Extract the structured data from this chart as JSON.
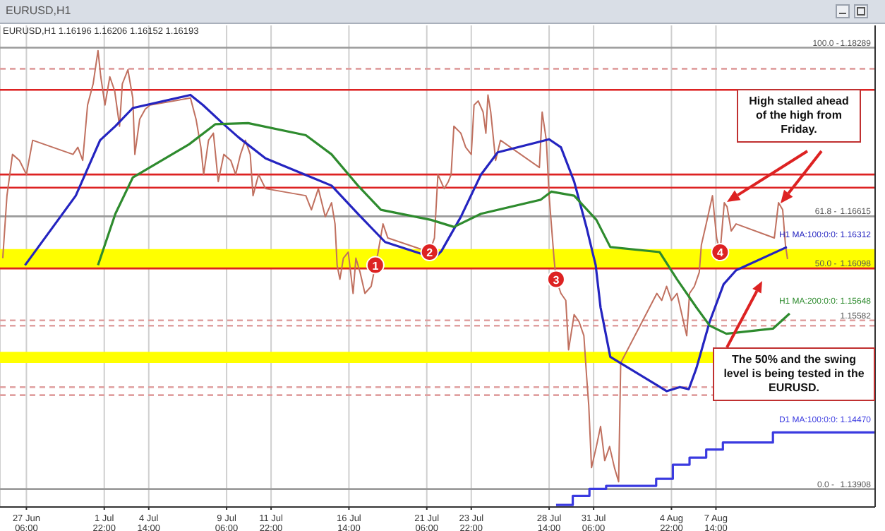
{
  "chart_data": {
    "type": "line",
    "title": "EURUSD,H1",
    "subtitle": "EURUSD,H1  1.16196 1.16206 1.16152 1.16193",
    "xlim": [
      "--06-25T16:00",
      "--08-17T03:00"
    ],
    "ylim": [
      1.1373,
      1.1851
    ],
    "xticks": [
      {
        "value": "--06-27T06:00",
        "label": "27 Jun 06:00"
      },
      {
        "value": "--07-01T22:00",
        "label": "1 Jul 22:00"
      },
      {
        "value": "--07-04T14:00",
        "label": "4 Jul 14:00"
      },
      {
        "value": "--07-09T06:00",
        "label": "9 Jul 06:00"
      },
      {
        "value": "--07-11T22:00",
        "label": "11 Jul 22:00"
      },
      {
        "value": "--07-16T14:00",
        "label": "16 Jul 14:00"
      },
      {
        "value": "--07-21T06:00",
        "label": "21 Jul 06:00"
      },
      {
        "value": "--07-23T22:00",
        "label": "23 Jul 22:00"
      },
      {
        "value": "--07-28T14:00",
        "label": "28 Jul 14:00"
      },
      {
        "value": "--07-31T06:00",
        "label": "31 Jul 06:00"
      },
      {
        "value": "--08-04T22:00",
        "label": "4 Aug 22:00"
      },
      {
        "value": "--08-07T14:00",
        "label": "7 Aug 14:00"
      }
    ],
    "tick_labels": "x",
    "grid": "x",
    "series": [
      {
        "color": "#c0705f",
        "x": [
          "--06-25T20:00",
          "--06-26T02:00",
          "--06-26T10:00",
          "--06-26T20:00",
          "--06-27T06:00",
          "--06-27T15:00",
          "--06-30T01:00",
          "--06-30T08:00",
          "--06-30T15:00",
          "--06-30T22:00",
          "--07-01T06:00",
          "--07-01T13:00",
          "--07-01T17:00",
          "--07-01T23:00",
          "--07-02T06:00",
          "--07-02T13:00",
          "--07-02T20:00",
          "--07-03T00:00",
          "--07-03T08:00",
          "--07-03T15:00",
          "--07-03T18:00",
          "--07-04T01:00",
          "--07-04T09:00",
          "--07-04T16:00",
          "--07-07T02:00",
          "--07-07T10:00",
          "--07-07T17:00",
          "--07-07T21:00",
          "--07-08T04:00",
          "--07-08T11:00",
          "--07-08T18:00",
          "--07-09T02:00",
          "--07-09T12:00",
          "--07-09T19:00",
          "--07-10T02:00",
          "--07-10T09:00",
          "--07-10T16:00",
          "--07-10T20:00",
          "--07-11T04:00",
          "--07-11T14:00",
          "--07-14T00:00",
          "--07-14T08:00",
          "--07-14T18:00",
          "--07-15T04:00",
          "--07-15T13:00",
          "--07-15T18:00",
          "--07-15T21:00",
          "--07-16T01:00",
          "--07-16T06:00",
          "--07-16T13:00",
          "--07-16T20:00",
          "--07-17T00:00",
          "--07-17T06:00",
          "--07-17T13:00",
          "--07-17T22:00",
          "--07-18T04:00",
          "--07-18T08:00",
          "--07-18T15:00",
          "--07-18T22:00",
          "--07-21T10:00",
          "--07-21T17:00",
          "--07-21T22:00",
          "--07-22T07:00",
          "--07-22T13:00",
          "--07-22T17:00",
          "--07-22T21:00",
          "--07-23T07:00",
          "--07-23T14:00",
          "--07-23T22:00",
          "--07-24T02:00",
          "--07-24T08:00",
          "--07-24T15:00",
          "--07-24T19:00",
          "--07-24T22:00",
          "--07-25T02:00",
          "--07-25T09:00",
          "--07-25T16:00",
          "--07-28T00:00",
          "--07-28T04:00",
          "--07-28T10:00",
          "--07-28T14:00",
          "--07-28T21:00",
          "--07-29T00:00",
          "--07-29T07:00",
          "--07-29T14:00",
          "--07-29T18:00",
          "--07-30T02:00",
          "--07-30T09:00",
          "--07-30T16:00",
          "--07-30T20:00",
          "--07-30T23:00",
          "--07-31T03:00",
          "--07-31T10:00",
          "--07-31T16:00",
          "--07-31T22:00",
          "--08-01T05:00",
          "--08-01T12:00",
          "--08-01T18:00",
          "--08-01T21:00",
          "--08-04T01:00",
          "--08-04T08:00",
          "--08-04T15:00",
          "--08-04T22:00",
          "--08-05T06:00",
          "--08-05T13:00",
          "--08-05T20:00",
          "--08-06T00:00",
          "--08-06T07:00",
          "--08-06T14:00",
          "--08-06T17:00",
          "--08-07T00:00",
          "--08-07T09:00",
          "--08-07T15:00",
          "--08-07T20:00",
          "--08-08T02:00",
          "--08-08T06:00",
          "--08-08T12:00",
          "--08-08T19:00",
          "--08-11T02:00",
          "--08-11T08:00",
          "--08-11T14:00",
          "--08-11T18:00",
          "--08-11T21:00"
        ],
        "values": [
          1.162,
          1.1682,
          1.1723,
          1.1717,
          1.1703,
          1.1737,
          1.1723,
          1.173,
          1.1717,
          1.1772,
          1.1793,
          1.1826,
          1.18,
          1.1772,
          1.18,
          1.1786,
          1.1751,
          1.1793,
          1.1807,
          1.1779,
          1.1723,
          1.1758,
          1.1768,
          1.1772,
          1.1779,
          1.1758,
          1.173,
          1.1703,
          1.1737,
          1.1744,
          1.1696,
          1.1723,
          1.1717,
          1.1703,
          1.1723,
          1.1737,
          1.1723,
          1.1682,
          1.1703,
          1.1689,
          1.1682,
          1.1668,
          1.1689,
          1.1661,
          1.1675,
          1.1654,
          1.1613,
          1.1599,
          1.162,
          1.1626,
          1.1585,
          1.162,
          1.1606,
          1.1585,
          1.1592,
          1.1613,
          1.1626,
          1.1654,
          1.164,
          1.1626,
          1.164,
          1.1703,
          1.1689,
          1.1696,
          1.1703,
          1.1751,
          1.1744,
          1.173,
          1.1723,
          1.1772,
          1.1776,
          1.1765,
          1.1744,
          1.1782,
          1.1765,
          1.1717,
          1.1737,
          1.171,
          1.1765,
          1.1737,
          1.1682,
          1.162,
          1.1599,
          1.1585,
          1.1578,
          1.1529,
          1.1564,
          1.1557,
          1.1543,
          1.1502,
          1.1474,
          1.1412,
          1.1433,
          1.1453,
          1.1419,
          1.1433,
          1.1412,
          1.1398,
          1.1516,
          1.1585,
          1.1578,
          1.1592,
          1.1578,
          1.1585,
          1.1564,
          1.1543,
          1.1585,
          1.1592,
          1.1606,
          1.1633,
          1.1654,
          1.1682,
          1.164,
          1.1626,
          1.1675,
          1.1671,
          1.1647,
          1.1654,
          1.164,
          1.1675,
          1.1668,
          1.1633,
          1.1619
        ]
      },
      {
        "name": "H1 MA:100:0:0: 1.16312",
        "color": "#2424c0",
        "x": [
          "--06-27T04:00",
          "--06-30T05:00",
          "--07-01T16:00",
          "--07-02T14:00",
          "--07-03T15:00",
          "--07-07T02:00",
          "--07-07T20:00",
          "--07-09T00:00",
          "--07-09T23:00",
          "--07-11T14:00",
          "--07-15T13:00",
          "--07-17T03:00",
          "--07-18T18:00",
          "--07-21T17:00",
          "--07-22T03:00",
          "--07-23T07:00",
          "--07-24T12:00",
          "--07-25T12:00",
          "--07-28T14:00",
          "--07-29T07:00",
          "--07-30T02:00",
          "--07-30T20:00",
          "--07-31T09:00",
          "--07-31T16:00",
          "--08-01T06:00",
          "--08-04T01:00",
          "--08-04T15:00",
          "--08-05T10:00",
          "--08-05T23:00",
          "--08-06T10:00",
          "--08-07T05:00",
          "--08-08T01:00",
          "--08-08T19:00",
          "--08-11T20:00"
        ],
        "values": [
          1.1613,
          1.1682,
          1.1737,
          1.1751,
          1.1769,
          1.1782,
          1.1772,
          1.1754,
          1.174,
          1.1719,
          1.1692,
          1.1664,
          1.1636,
          1.162,
          1.1627,
          1.1661,
          1.1703,
          1.1725,
          1.1738,
          1.173,
          1.1696,
          1.165,
          1.1613,
          1.1571,
          1.1522,
          1.1494,
          1.1488,
          1.1492,
          1.149,
          1.1511,
          1.1557,
          1.1594,
          1.1608,
          1.1631
        ]
      },
      {
        "name": "H1 MA:200:0:0: 1.15648",
        "color": "#2e8b2e",
        "x": [
          "--07-01T13:00",
          "--07-02T14:00",
          "--07-03T15:00",
          "--07-07T00:00",
          "--07-08T14:00",
          "--07-10T13:00",
          "--07-14T00:00",
          "--07-15T13:00",
          "--07-17T03:00",
          "--07-18T12:00",
          "--07-21T12:00",
          "--07-22T21:00",
          "--07-24T12:00",
          "--07-28T02:00",
          "--07-28T17:00",
          "--07-30T02:00",
          "--07-31T10:00",
          "--08-01T06:00",
          "--08-04T05:00",
          "--08-05T06:00",
          "--08-06T10:00",
          "--08-07T05:00",
          "--08-08T05:00",
          "--08-11T00:00",
          "--08-12T00:00"
        ],
        "values": [
          1.1613,
          1.1664,
          1.17,
          1.1733,
          1.1753,
          1.1754,
          1.1742,
          1.1723,
          1.1692,
          1.1668,
          1.1658,
          1.1651,
          1.1664,
          1.1678,
          1.1686,
          1.1682,
          1.1658,
          1.1631,
          1.1626,
          1.1599,
          1.1571,
          1.1553,
          1.1545,
          1.155,
          1.1565
        ]
      },
      {
        "name": "D1 MA:100:0:0: 1.14470",
        "type": "step",
        "color": "#3a3ae0",
        "x": [
          "--07-29T00:00",
          "--07-30T00:00",
          "--07-31T00:00",
          "--08-01T00:00",
          "--08-04T00:00",
          "--08-05T00:00",
          "--08-06T00:00",
          "--08-07T00:00",
          "--08-08T00:00",
          "--08-11T00:00",
          "--08-17T03:00"
        ],
        "values": [
          1.1375,
          1.1384,
          1.1391,
          1.1394,
          1.1401,
          1.1415,
          1.1422,
          1.143,
          1.1437,
          1.1447,
          1.1447
        ]
      }
    ],
    "bands": [
      {
        "axis": "y",
        "from": 1.1609,
        "to": 1.1629,
        "color": "#ffff00"
      },
      {
        "axis": "y",
        "from": 1.1516,
        "to": 1.1527,
        "color": "#ffff00"
      }
    ],
    "ref_lines": [
      {
        "axis": "y",
        "value": 1.18289,
        "label": "1.18289",
        "color": "#9a9a9a",
        "line_style": "solid"
      },
      {
        "axis": "y",
        "value": 1.1808,
        "color": "#e0a0a0",
        "line_style": "dashed"
      },
      {
        "axis": "y",
        "value": 1.1787,
        "color": "#dd2222",
        "line_style": "solid"
      },
      {
        "axis": "y",
        "value": 1.1703,
        "color": "#dd2222",
        "line_style": "solid"
      },
      {
        "axis": "y",
        "value": 1.169,
        "color": "#dd2222",
        "line_style": "solid"
      },
      {
        "axis": "y",
        "value": 1.16615,
        "label": "1.16615",
        "color": "#9a9a9a",
        "line_style": "solid"
      },
      {
        "axis": "y",
        "value": 1.16098,
        "label": "1.16098",
        "color": "#dd2222",
        "line_style": "solid"
      },
      {
        "axis": "y",
        "value": 1.15582,
        "label": "1.15582",
        "color": "#e0a0a0",
        "line_style": "dashed"
      },
      {
        "axis": "y",
        "value": 1.1553,
        "color": "#e0a0a0",
        "line_style": "dashed"
      },
      {
        "axis": "y",
        "value": 1.1492,
        "color": "#e0a0a0",
        "line_style": "dashed"
      },
      {
        "axis": "y",
        "value": 1.1484,
        "color": "#e0a0a0",
        "line_style": "dashed"
      },
      {
        "axis": "y",
        "value": 1.13908,
        "label": "1.13908",
        "color": "#9a9a9a",
        "line_style": "solid"
      }
    ],
    "annotations": [
      "High stalled ahead of the high from Friday.",
      "The 50% and the swing level is being tested in the EURUSD.",
      {
        "text": "1",
        "x": "--07-18T04:00",
        "y": 1.1613
      },
      {
        "text": "2",
        "x": "--07-21T10:00",
        "y": 1.1626
      },
      {
        "text": "3",
        "x": "--07-29T00:00",
        "y": 1.1599
      },
      {
        "text": "4",
        "x": "--08-07T20:00",
        "y": 1.1626
      },
      {
        "text": "100.0 -",
        "x": "--08-14T04:00",
        "y": 1.18289
      },
      {
        "text": "61.8 -",
        "x": "--08-14T04:00",
        "y": 1.16615
      },
      {
        "text": "50.0 -",
        "x": "--08-14T04:00",
        "y": 1.16098
      },
      {
        "text": "0.0 -",
        "x": "--08-14T04:00",
        "y": 1.13908
      }
    ]
  }
}
